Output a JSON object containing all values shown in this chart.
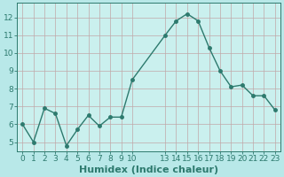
{
  "x_values": [
    0,
    1,
    2,
    3,
    4,
    5,
    6,
    7,
    8,
    9,
    10,
    13,
    14,
    15,
    16,
    17,
    18,
    19,
    20,
    21,
    22,
    23
  ],
  "y": [
    6.0,
    5.0,
    6.9,
    6.6,
    4.8,
    5.7,
    6.5,
    5.9,
    6.4,
    6.4,
    8.5,
    11.0,
    11.8,
    12.2,
    11.8,
    10.3,
    9.0,
    8.1,
    8.2,
    7.6,
    7.6,
    6.8
  ],
  "line_color": "#2d7a6e",
  "marker": "o",
  "marker_size": 2.5,
  "line_width": 1.0,
  "bg_color": "#b8e8e8",
  "plot_bg_color": "#caf0ee",
  "grid_color": "#c8b8b8",
  "xlabel": "Humidex (Indice chaleur)",
  "xlabel_fontsize": 8,
  "xlabel_color": "#2d7a6e",
  "ylim": [
    4.5,
    12.8
  ],
  "yticks": [
    5,
    6,
    7,
    8,
    9,
    10,
    11,
    12
  ],
  "xtick_labels": [
    "0",
    "1",
    "2",
    "3",
    "4",
    "5",
    "6",
    "7",
    "8",
    "9",
    "10",
    "13",
    "14",
    "15",
    "16",
    "17",
    "18",
    "19",
    "20",
    "21",
    "22",
    "23"
  ],
  "tick_color": "#2d7a6e",
  "tick_fontsize": 6.5,
  "axis_color": "#2d7a6e",
  "grid_major_color": "#c0a8a8",
  "grid_minor_color": "#d4c0c0"
}
